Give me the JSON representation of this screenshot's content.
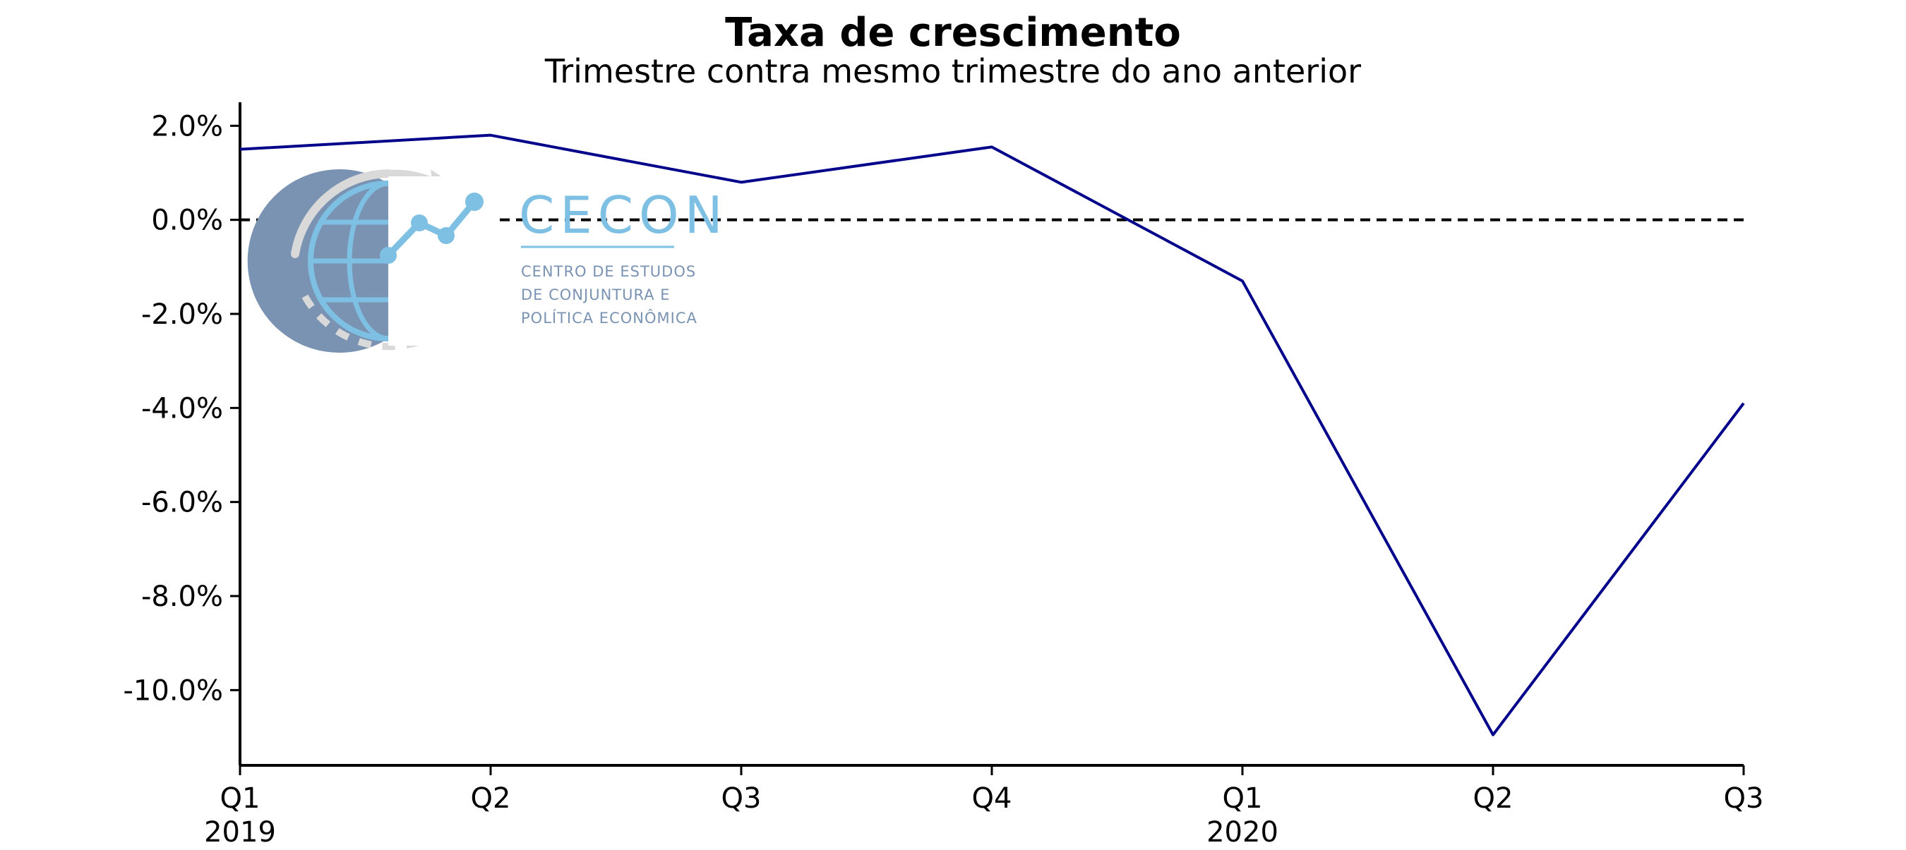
{
  "chart_data": {
    "type": "line",
    "title": "Taxa de crescimento",
    "subtitle": "Trimestre contra mesmo trimestre do ano anterior",
    "xlabel": "",
    "ylabel": "",
    "categories": [
      "Q1 2019",
      "Q2 2019",
      "Q3 2019",
      "Q4 2019",
      "Q1 2020",
      "Q2 2020",
      "Q3 2020"
    ],
    "x_tick_labels": [
      {
        "quarter": "Q1",
        "year": "2019"
      },
      {
        "quarter": "Q2",
        "year": ""
      },
      {
        "quarter": "Q3",
        "year": ""
      },
      {
        "quarter": "Q4",
        "year": ""
      },
      {
        "quarter": "Q1",
        "year": "2020"
      },
      {
        "quarter": "Q2",
        "year": ""
      },
      {
        "quarter": "Q3",
        "year": ""
      }
    ],
    "series": [
      {
        "values": [
          1.5,
          1.8,
          0.8,
          1.55,
          -1.3,
          -10.95,
          -3.9
        ],
        "color": "#00008b"
      }
    ],
    "y_ticks": [
      2.0,
      0.0,
      -2.0,
      -4.0,
      -6.0,
      -8.0,
      -10.0
    ],
    "y_tick_labels": [
      "2.0%",
      "0.0%",
      "-2.0%",
      "-4.0%",
      "-6.0%",
      "-8.0%",
      "-10.0%"
    ],
    "ylim": [
      -11.6,
      2.5
    ],
    "reference_line": {
      "value": 0.0,
      "style": "dashed",
      "color": "#000000"
    },
    "grid": false,
    "legend": "none"
  },
  "logo": {
    "name": "CECON",
    "lines": [
      "CENTRO DE ESTUDOS",
      "DE CONJUNTURA E",
      "POLÍTICA ECONÔMICA"
    ],
    "icon": "globe-chart-icon",
    "colors": {
      "light_blue": "#7ec0e3",
      "slate": "#7a93b3",
      "gray": "#d9d9d9"
    }
  }
}
